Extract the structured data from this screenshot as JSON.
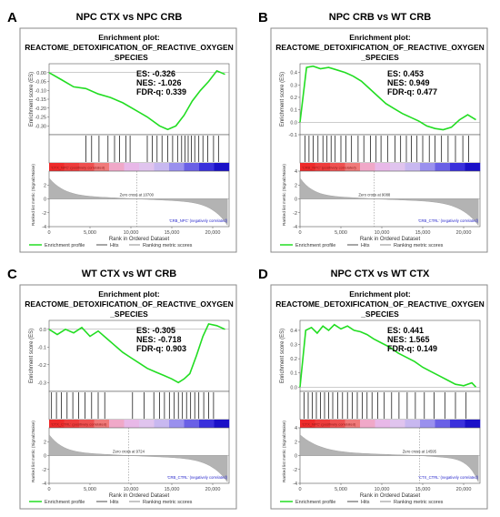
{
  "figure": {
    "plot_heading_line1": "Enrichment plot:",
    "plot_heading_line2": "REACTOME_DETOXIFICATION_OF_REACTIVE_OXYGEN",
    "plot_heading_line3": "_SPECIES",
    "y1_label": "Enrichment score (ES)",
    "y2_label": "Ranked list metric (Signal2Noise)",
    "x_label": "Rank in Ordered Dataset",
    "legend": [
      "Enrichment profile",
      "Hits",
      "Ranking metric scores"
    ],
    "colors": {
      "profile": "#22dd22",
      "hits": "#000000",
      "metric": "#b3b3b3",
      "pos": "#ee3333",
      "neg": "#2222dd",
      "mid": "#e8b0e8"
    }
  },
  "chart_data": [
    {
      "type": "line",
      "panel_letter": "A",
      "title": "NPC CTX vs NPC CRB",
      "stats": {
        "es": "ES: -0.326",
        "nes": "NES: -1.026",
        "fdr": "FDR-q: 0.339"
      },
      "x_ticks": [
        "0",
        "5,000",
        "10,000",
        "15,000",
        "20,000"
      ],
      "x_tick_values": [
        0,
        5000,
        10000,
        15000,
        20000
      ],
      "xlim": [
        0,
        22000
      ],
      "y_ticks": [
        "0.00",
        "-0.05",
        "-0.10",
        "-0.15",
        "-0.20",
        "-0.25",
        "-0.30"
      ],
      "y_tick_values": [
        0.0,
        -0.05,
        -0.1,
        -0.15,
        -0.2,
        -0.25,
        -0.3
      ],
      "ylim": [
        -0.35,
        0.05
      ],
      "es_x": [
        0,
        1500,
        3000,
        4500,
        6000,
        7500,
        9000,
        10500,
        12000,
        13500,
        14500,
        15500,
        16500,
        17500,
        18500,
        19500,
        20500,
        21500
      ],
      "es_y": [
        0.0,
        -0.04,
        -0.08,
        -0.09,
        -0.12,
        -0.14,
        -0.17,
        -0.21,
        -0.25,
        -0.3,
        -0.32,
        -0.3,
        -0.24,
        -0.16,
        -0.1,
        -0.05,
        0.01,
        -0.01
      ],
      "hits": [
        4500,
        5200,
        6100,
        7200,
        8000,
        8600,
        9400,
        9900,
        12000,
        12600,
        13200,
        13800,
        14500,
        15100,
        15700,
        16200,
        16600,
        17000,
        17400,
        17800,
        18300,
        18800,
        19400,
        20100,
        20700
      ],
      "metric_ylim": [
        -4,
        4
      ],
      "metric_ticks": [
        "2",
        "0",
        "-2",
        "-4"
      ],
      "metric_tick_values": [
        2,
        0,
        -2,
        -4
      ],
      "zero_cross_rank": 10700,
      "zero_cross_label": "Zero cross at 10700",
      "pos_label": "'CTX_NPC' (positively correlated)",
      "neg_label": "'CRB_NPC' (negatively correlated)"
    },
    {
      "type": "line",
      "panel_letter": "B",
      "title": "NPC CRB vs WT CRB",
      "stats": {
        "es": "ES: 0.453",
        "nes": "NES: 0.949",
        "fdr": "FDR-q: 0.477"
      },
      "x_ticks": [
        "0",
        "5,000",
        "10,000",
        "15,000",
        "20,000"
      ],
      "x_tick_values": [
        0,
        5000,
        10000,
        15000,
        20000
      ],
      "xlim": [
        0,
        22000
      ],
      "y_ticks": [
        "0.4",
        "0.3",
        "0.2",
        "0.1",
        "0.0",
        "-0.1"
      ],
      "y_tick_values": [
        0.4,
        0.3,
        0.2,
        0.1,
        0.0,
        -0.1
      ],
      "ylim": [
        -0.1,
        0.47
      ],
      "es_x": [
        0,
        800,
        1600,
        2500,
        3500,
        4500,
        5500,
        6500,
        7500,
        8500,
        9500,
        10500,
        11500,
        12500,
        13500,
        14500,
        15500,
        16500,
        17500,
        18500,
        19500,
        20500,
        21500
      ],
      "es_y": [
        0.0,
        0.44,
        0.45,
        0.43,
        0.44,
        0.42,
        0.4,
        0.37,
        0.33,
        0.27,
        0.21,
        0.15,
        0.11,
        0.07,
        0.04,
        0.01,
        -0.03,
        -0.05,
        -0.06,
        -0.04,
        0.02,
        0.06,
        0.02
      ],
      "hits": [
        600,
        1100,
        1600,
        2200,
        2800,
        3300,
        3800,
        4300,
        5000,
        5600,
        6300,
        7100,
        7800,
        8600,
        9300,
        9900,
        10700,
        11600,
        12300,
        13000,
        13600,
        14300,
        15000,
        15800,
        16500,
        17300,
        18100,
        19000,
        19900,
        20600
      ],
      "metric_ylim": [
        -4,
        4
      ],
      "metric_ticks": [
        "4",
        "2",
        "0",
        "-2",
        "-4"
      ],
      "metric_tick_values": [
        4,
        2,
        0,
        -2,
        -4
      ],
      "zero_cross_rank": 9088,
      "zero_cross_label": "Zero cross at 9088",
      "pos_label": "'CRB_NPC' (positively correlated)",
      "neg_label": "'CRB_CTRL' (negatively correlated)"
    },
    {
      "type": "line",
      "panel_letter": "C",
      "title": "WT CTX vs WT CRB",
      "stats": {
        "es": "ES: -0.305",
        "nes": "NES: -0.718",
        "fdr": "FDR-q: 0.903"
      },
      "x_ticks": [
        "0",
        "5,000",
        "10,000",
        "15,000",
        "20,000"
      ],
      "x_tick_values": [
        0,
        5000,
        10000,
        15000,
        20000
      ],
      "xlim": [
        0,
        22000
      ],
      "y_ticks": [
        "0.0",
        "-0.1",
        "-0.2",
        "-0.3"
      ],
      "y_tick_values": [
        0.0,
        -0.1,
        -0.2,
        -0.3
      ],
      "ylim": [
        -0.35,
        0.05
      ],
      "es_x": [
        0,
        1000,
        2000,
        3000,
        4000,
        5000,
        6000,
        7000,
        8000,
        9000,
        10000,
        11000,
        12000,
        13000,
        14000,
        15000,
        15800,
        16500,
        17200,
        18000,
        18800,
        19500,
        20500,
        21500
      ],
      "es_y": [
        0.0,
        -0.03,
        0.0,
        -0.02,
        0.01,
        -0.04,
        -0.01,
        -0.05,
        -0.09,
        -0.13,
        -0.16,
        -0.19,
        -0.22,
        -0.24,
        -0.26,
        -0.28,
        -0.3,
        -0.28,
        -0.25,
        -0.15,
        -0.04,
        0.03,
        0.02,
        0.0
      ],
      "hits": [
        300,
        900,
        1500,
        2200,
        2900,
        3600,
        4400,
        5200,
        6000,
        6800,
        10200,
        11600,
        12800,
        13500,
        14100,
        14700,
        15300,
        15800,
        16300,
        16800,
        17300,
        17800,
        18300,
        18900,
        19500,
        20100
      ],
      "metric_ylim": [
        -4,
        4
      ],
      "metric_ticks": [
        "2",
        "0",
        "-2",
        "-4"
      ],
      "metric_tick_values": [
        2,
        0,
        -2,
        -4
      ],
      "zero_cross_rank": 9724,
      "zero_cross_label": "Zero cross at 9724",
      "pos_label": "'CTX_CTRL' (positively correlated)",
      "neg_label": "'CRB_CTRL' (negatively correlated)"
    },
    {
      "type": "line",
      "panel_letter": "D",
      "title": "NPC CTX vs WT CTX",
      "stats": {
        "es": "ES: 0.441",
        "nes": "NES: 1.565",
        "fdr": "FDR-q: 0.149"
      },
      "x_ticks": [
        "0",
        "5,000",
        "10,000",
        "15,000",
        "20,000"
      ],
      "x_tick_values": [
        0,
        5000,
        10000,
        15000,
        20000
      ],
      "xlim": [
        0,
        22000
      ],
      "y_ticks": [
        "0.4",
        "0.3",
        "0.2",
        "0.1",
        "0.0"
      ],
      "y_tick_values": [
        0.4,
        0.3,
        0.2,
        0.1,
        0.0
      ],
      "ylim": [
        -0.03,
        0.47
      ],
      "es_x": [
        0,
        700,
        1400,
        2100,
        2800,
        3500,
        4200,
        5000,
        5800,
        6600,
        7400,
        8200,
        9000,
        10000,
        11000,
        12000,
        13000,
        14000,
        15000,
        16000,
        17000,
        18000,
        19000,
        20000,
        21000,
        21500
      ],
      "es_y": [
        0.0,
        0.4,
        0.42,
        0.38,
        0.43,
        0.4,
        0.44,
        0.41,
        0.43,
        0.4,
        0.39,
        0.37,
        0.34,
        0.31,
        0.28,
        0.24,
        0.21,
        0.18,
        0.14,
        0.11,
        0.08,
        0.05,
        0.02,
        0.01,
        0.03,
        0.0
      ],
      "hits": [
        500,
        1000,
        1500,
        2000,
        2500,
        3000,
        3500,
        4000,
        4600,
        5200,
        5800,
        6400,
        7000,
        7600,
        8200,
        8800,
        9500,
        10300,
        11200,
        12100,
        13100,
        14100,
        15200,
        16400,
        17700,
        19000,
        20300
      ],
      "metric_ylim": [
        -4,
        4
      ],
      "metric_ticks": [
        "4",
        "2",
        "0",
        "-2",
        "-4"
      ],
      "metric_tick_values": [
        4,
        2,
        0,
        -2,
        -4
      ],
      "zero_cross_rank": 14595,
      "zero_cross_label": "Zero cross at 14595",
      "pos_label": "'CTX_NPC' (positively correlated)",
      "neg_label": "'CTX_CTRL' (negatively correlated)"
    }
  ]
}
